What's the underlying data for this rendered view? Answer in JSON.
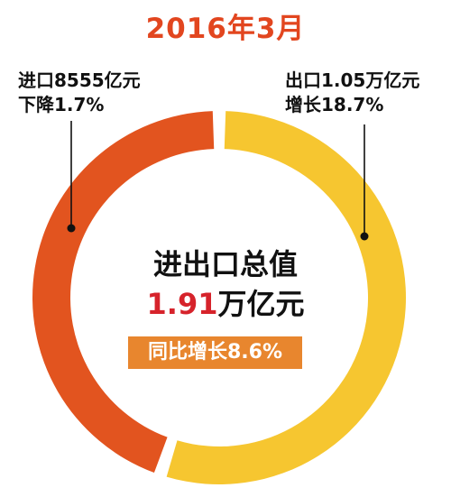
{
  "chart_data": {
    "type": "pie",
    "title": "2016年3月",
    "slices": [
      {
        "label_line1": "出口1.05万亿元",
        "label_line2": "增长18.7%",
        "value": 1.05,
        "color": "#f6c630"
      },
      {
        "label_line1": "进口8555亿元",
        "label_line2": "下降1.7%",
        "value": 0.8555,
        "color": "#e2541f"
      }
    ],
    "center": {
      "line1": "进出口总值",
      "value": "1.91",
      "unit": "万亿元",
      "badge": "同比增长8.6%"
    },
    "colors": {
      "title": "#e2461f",
      "value": "#d6232b",
      "badge_bg": "#e8862e"
    }
  }
}
